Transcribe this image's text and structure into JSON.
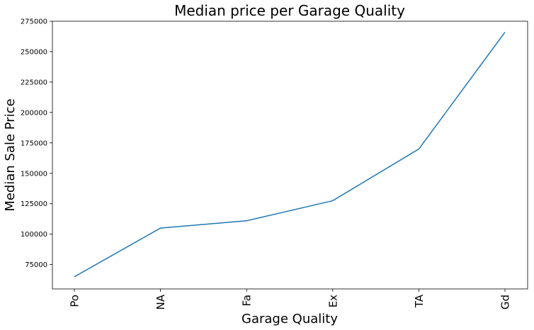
{
  "chart_data": {
    "type": "line",
    "title": "Median price per Garage Quality",
    "xlabel": "Garage Quality",
    "ylabel": "Median Sale Price",
    "categories": [
      "Po",
      "NA",
      "Fa",
      "Ex",
      "TA",
      "Gd"
    ],
    "values": [
      65000,
      105000,
      111000,
      127500,
      170000,
      266000
    ],
    "yticks": [
      75000,
      100000,
      125000,
      150000,
      175000,
      200000,
      225000,
      250000,
      275000
    ],
    "ylim": [
      55000,
      275000
    ],
    "grid": false,
    "line_color": "#1f77b4"
  }
}
